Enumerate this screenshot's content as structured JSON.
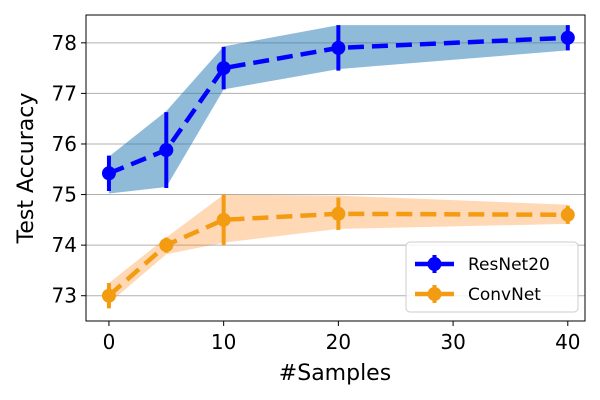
{
  "chart_data": {
    "type": "line",
    "title": "",
    "xlabel": "#Samples",
    "ylabel": "Test Accuracy",
    "x": [
      0,
      5,
      10,
      20,
      40
    ],
    "xlim": [
      -2,
      41.5
    ],
    "ylim": [
      72.5,
      78.55
    ],
    "xticks": [
      0,
      10,
      20,
      30,
      40
    ],
    "xtick_labels": [
      "0",
      "10",
      "20",
      "30",
      "40"
    ],
    "yticks": [
      73,
      74,
      75,
      76,
      77,
      78
    ],
    "ytick_labels": [
      "73",
      "74",
      "75",
      "76",
      "77",
      "78"
    ],
    "grid": "horizontal",
    "legend_position": "bottom-right",
    "series": [
      {
        "name": "ResNet20",
        "color": "#0000ff",
        "band_color": "#1f77b4",
        "values": [
          75.42,
          75.88,
          77.5,
          77.9,
          78.1
        ],
        "error": [
          0.35,
          0.75,
          0.42,
          0.45,
          0.25
        ],
        "band_lower": [
          75.02,
          75.15,
          77.08,
          77.48,
          77.85
        ],
        "band_upper": [
          75.75,
          76.65,
          77.93,
          78.35,
          78.35
        ]
      },
      {
        "name": "ConvNet",
        "color": "#f39c12",
        "band_color": "#ff7f0e",
        "values": [
          73.0,
          74.0,
          74.5,
          74.62,
          74.6
        ],
        "error": [
          0.25,
          0.15,
          0.5,
          0.32,
          0.18
        ],
        "band_lower": [
          72.85,
          73.82,
          74.05,
          74.32,
          74.42
        ],
        "band_upper": [
          73.25,
          74.15,
          75.0,
          74.98,
          74.8
        ]
      }
    ]
  }
}
